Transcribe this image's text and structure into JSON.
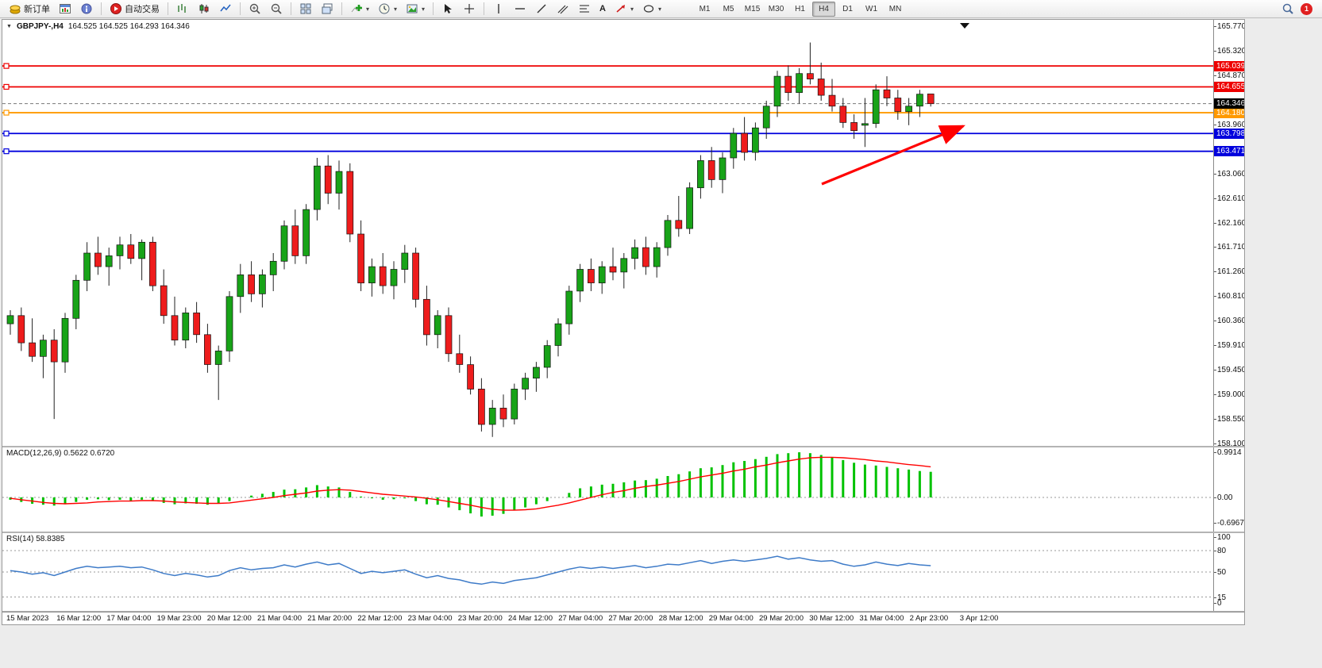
{
  "toolbar": {
    "new_order_label": "新订单",
    "auto_trading_label": "自动交易",
    "text_tool_label": "A",
    "timeframes": [
      "M1",
      "M5",
      "M15",
      "M30",
      "H1",
      "H4",
      "D1",
      "W1",
      "MN"
    ],
    "active_timeframe": "H4",
    "badge_count": "1"
  },
  "icons": {
    "new_order": "gold-coins",
    "market_watch": "window-chart",
    "data_window": "info-circle",
    "auto_trading": "red-play-circle",
    "chart_bars": "ohlc-bars",
    "chart_candles": "candlesticks",
    "chart_line": "line-chart",
    "zoom_in": "magnifier-plus",
    "zoom_out": "magnifier-minus",
    "tile_windows": "tiled-rects",
    "cascade_windows": "cascade-rects",
    "indicators": "green-plus",
    "periods": "clock",
    "templates": "picture",
    "cursor": "arrow-pointer",
    "crosshair": "crosshair",
    "vertical_line": "vertical-bar",
    "horizontal_line": "horizontal-bar",
    "trendline": "diagonal",
    "channel": "parallel-lines",
    "fibonacci": "fib-lines",
    "text_tool": "letter-A",
    "arrows_tool": "red-arrow",
    "shapes": "ellipse-dropdown",
    "search": "magnifier",
    "notifications": "red-badge-1",
    "scroll_end_marker": "black-down-triangle"
  },
  "colors": {
    "candle_up": "#18a318",
    "candle_down": "#ee1c1c",
    "wick": "#222222",
    "macd_hist": "#00c200",
    "macd_signal": "#ff0000",
    "rsi": "#3e7bc8",
    "arrow": "#ff0000",
    "current_price_bg": "#000000"
  },
  "chart_data": {
    "type": "candlestick",
    "symbol": "GBPJPY-",
    "timeframe": "H4",
    "symbol_period": "GBPJPY-,H4",
    "ohlc_text": "164.525 164.525 164.293 164.346",
    "last_ohlc": {
      "open": 164.525,
      "high": 164.525,
      "low": 164.293,
      "close": 164.346
    },
    "price_range": {
      "max": 165.77,
      "min": 158.1
    },
    "price_axis_ticks": [
      "165.770",
      "165.320",
      "164.870",
      "163.960",
      "163.060",
      "162.610",
      "162.160",
      "161.710",
      "161.260",
      "160.810",
      "160.360",
      "159.910",
      "159.450",
      "159.000",
      "158.550",
      "158.100"
    ],
    "hlines": [
      {
        "price": 165.039,
        "label": "165.039",
        "color": "#ee0000",
        "style": "resistance"
      },
      {
        "price": 164.655,
        "label": "164.655",
        "color": "#ee0000",
        "style": "resistance"
      },
      {
        "price": 164.18,
        "label": "164.180",
        "color": "#ff9900",
        "style": "pivot"
      },
      {
        "price": 163.798,
        "label": "163.798",
        "color": "#0000dd",
        "style": "support"
      },
      {
        "price": 163.471,
        "label": "163.471",
        "color": "#0000dd",
        "style": "support"
      }
    ],
    "current_price_value": 164.346,
    "current_price_label": "164.346",
    "annotation_arrow": {
      "description": "red up-sloping trend arrow",
      "color": "#ff0000"
    },
    "candles": [
      [
        160.3,
        160.55,
        160.1,
        160.45
      ],
      [
        160.45,
        160.6,
        159.8,
        159.95
      ],
      [
        159.95,
        160.4,
        159.6,
        159.7
      ],
      [
        159.7,
        160.1,
        159.3,
        160.0
      ],
      [
        160.0,
        160.2,
        158.55,
        159.6
      ],
      [
        159.6,
        160.5,
        159.4,
        160.4
      ],
      [
        160.4,
        161.2,
        160.2,
        161.1
      ],
      [
        161.1,
        161.8,
        160.9,
        161.6
      ],
      [
        161.6,
        161.9,
        161.2,
        161.35
      ],
      [
        161.35,
        161.7,
        161.0,
        161.55
      ],
      [
        161.55,
        161.9,
        161.3,
        161.75
      ],
      [
        161.75,
        161.95,
        161.4,
        161.5
      ],
      [
        161.5,
        161.85,
        161.1,
        161.8
      ],
      [
        161.8,
        161.9,
        160.9,
        161.0
      ],
      [
        161.0,
        161.3,
        160.3,
        160.45
      ],
      [
        160.45,
        160.8,
        159.9,
        160.0
      ],
      [
        160.0,
        160.6,
        159.85,
        160.5
      ],
      [
        160.5,
        160.7,
        159.95,
        160.1
      ],
      [
        160.1,
        160.3,
        159.4,
        159.55
      ],
      [
        159.55,
        159.9,
        158.9,
        159.8
      ],
      [
        159.8,
        160.9,
        159.6,
        160.8
      ],
      [
        160.8,
        161.4,
        160.5,
        161.2
      ],
      [
        161.2,
        161.45,
        160.7,
        160.85
      ],
      [
        160.85,
        161.3,
        160.6,
        161.2
      ],
      [
        161.2,
        161.6,
        160.9,
        161.45
      ],
      [
        161.45,
        162.2,
        161.3,
        162.1
      ],
      [
        162.1,
        162.4,
        161.4,
        161.55
      ],
      [
        161.55,
        162.5,
        161.4,
        162.4
      ],
      [
        162.4,
        163.35,
        162.2,
        163.2
      ],
      [
        163.2,
        163.4,
        162.5,
        162.7
      ],
      [
        162.7,
        163.3,
        162.4,
        163.1
      ],
      [
        163.1,
        163.25,
        161.8,
        161.95
      ],
      [
        161.95,
        162.2,
        160.9,
        161.05
      ],
      [
        161.05,
        161.5,
        160.8,
        161.35
      ],
      [
        161.35,
        161.6,
        160.85,
        161.0
      ],
      [
        161.0,
        161.45,
        160.75,
        161.3
      ],
      [
        161.3,
        161.75,
        161.05,
        161.6
      ],
      [
        161.6,
        161.7,
        160.6,
        160.75
      ],
      [
        160.75,
        161.0,
        159.9,
        160.1
      ],
      [
        160.1,
        160.55,
        159.85,
        160.45
      ],
      [
        160.45,
        160.6,
        159.6,
        159.75
      ],
      [
        159.75,
        160.1,
        159.4,
        159.55
      ],
      [
        159.55,
        159.7,
        159.0,
        159.1
      ],
      [
        159.1,
        159.3,
        158.32,
        158.45
      ],
      [
        158.45,
        158.9,
        158.22,
        158.75
      ],
      [
        158.75,
        159.0,
        158.4,
        158.55
      ],
      [
        158.55,
        159.2,
        158.45,
        159.1
      ],
      [
        159.1,
        159.4,
        158.9,
        159.3
      ],
      [
        159.3,
        159.6,
        159.05,
        159.5
      ],
      [
        159.5,
        160.0,
        159.3,
        159.9
      ],
      [
        159.9,
        160.4,
        159.7,
        160.3
      ],
      [
        160.3,
        161.0,
        160.1,
        160.9
      ],
      [
        160.9,
        161.4,
        160.7,
        161.3
      ],
      [
        161.3,
        161.5,
        160.9,
        161.05
      ],
      [
        161.05,
        161.45,
        160.85,
        161.35
      ],
      [
        161.35,
        161.7,
        161.1,
        161.25
      ],
      [
        161.25,
        161.6,
        160.95,
        161.5
      ],
      [
        161.5,
        161.85,
        161.3,
        161.7
      ],
      [
        161.7,
        161.9,
        161.2,
        161.35
      ],
      [
        161.35,
        161.8,
        161.15,
        161.7
      ],
      [
        161.7,
        162.3,
        161.55,
        162.2
      ],
      [
        162.2,
        162.65,
        161.9,
        162.05
      ],
      [
        162.05,
        162.9,
        161.95,
        162.8
      ],
      [
        162.8,
        163.4,
        162.6,
        163.3
      ],
      [
        163.3,
        163.55,
        162.8,
        162.95
      ],
      [
        162.95,
        163.45,
        162.7,
        163.35
      ],
      [
        163.35,
        163.9,
        163.15,
        163.8
      ],
      [
        163.8,
        164.1,
        163.3,
        163.45
      ],
      [
        163.45,
        164.0,
        163.3,
        163.9
      ],
      [
        163.9,
        164.4,
        163.7,
        164.3
      ],
      [
        164.3,
        164.95,
        164.1,
        164.85
      ],
      [
        164.85,
        165.05,
        164.4,
        164.55
      ],
      [
        164.55,
        165.0,
        164.35,
        164.9
      ],
      [
        164.9,
        165.47,
        164.7,
        164.8
      ],
      [
        164.8,
        165.1,
        164.4,
        164.5
      ],
      [
        164.5,
        164.8,
        164.2,
        164.3
      ],
      [
        164.3,
        164.45,
        163.9,
        164.0
      ],
      [
        164.0,
        164.15,
        163.7,
        163.85
      ],
      [
        163.95,
        164.45,
        163.55,
        163.98
      ],
      [
        163.98,
        164.7,
        163.9,
        164.6
      ],
      [
        164.6,
        164.85,
        164.3,
        164.45
      ],
      [
        164.45,
        164.6,
        164.05,
        164.2
      ],
      [
        164.2,
        164.45,
        163.95,
        164.3
      ],
      [
        164.3,
        164.6,
        164.1,
        164.52
      ],
      [
        164.525,
        164.525,
        164.293,
        164.346
      ]
    ],
    "time_labels": [
      "15 Mar 2023",
      "16 Mar 12:00",
      "17 Mar 04:00",
      "19 Mar 23:00",
      "20 Mar 12:00",
      "21 Mar 04:00",
      "21 Mar 20:00",
      "22 Mar 12:00",
      "23 Mar 04:00",
      "23 Mar 20:00",
      "24 Mar 12:00",
      "27 Mar 04:00",
      "27 Mar 20:00",
      "28 Mar 12:00",
      "29 Mar 04:00",
      "29 Mar 20:00",
      "30 Mar 12:00",
      "31 Mar 04:00",
      "2 Apr 23:00",
      "3 Apr 12:00"
    ],
    "indicators": {
      "macd": {
        "label": "MACD(12,26,9) 0.5622 0.6720",
        "params": "12,26,9",
        "main_value": 0.5622,
        "signal_value": 0.672,
        "axis": [
          {
            "v": 0.9914,
            "t": "0.9914"
          },
          {
            "v": 0,
            "t": "0.00"
          },
          {
            "v": -0.6967,
            "t": "-0.6967"
          }
        ],
        "range": [
          -0.6967,
          0.9914
        ],
        "histogram": [
          -0.05,
          -0.1,
          -0.14,
          -0.16,
          -0.18,
          -0.15,
          -0.1,
          -0.05,
          -0.04,
          -0.06,
          -0.05,
          -0.07,
          -0.05,
          -0.08,
          -0.12,
          -0.15,
          -0.13,
          -0.14,
          -0.16,
          -0.14,
          -0.08,
          0.0,
          0.04,
          0.08,
          0.12,
          0.17,
          0.18,
          0.22,
          0.27,
          0.24,
          0.22,
          0.12,
          0.02,
          -0.02,
          -0.05,
          -0.04,
          -0.02,
          -0.08,
          -0.15,
          -0.16,
          -0.22,
          -0.28,
          -0.35,
          -0.42,
          -0.4,
          -0.36,
          -0.28,
          -0.22,
          -0.15,
          -0.08,
          0.0,
          0.1,
          0.2,
          0.24,
          0.28,
          0.3,
          0.33,
          0.37,
          0.38,
          0.41,
          0.47,
          0.51,
          0.57,
          0.64,
          0.66,
          0.71,
          0.77,
          0.8,
          0.84,
          0.89,
          0.95,
          0.97,
          0.99,
          0.97,
          0.93,
          0.88,
          0.82,
          0.76,
          0.72,
          0.7,
          0.67,
          0.64,
          0.61,
          0.58,
          0.5622
        ],
        "signal": [
          -0.02,
          -0.05,
          -0.08,
          -0.11,
          -0.13,
          -0.14,
          -0.13,
          -0.12,
          -0.1,
          -0.09,
          -0.08,
          -0.08,
          -0.07,
          -0.07,
          -0.08,
          -0.1,
          -0.11,
          -0.12,
          -0.13,
          -0.13,
          -0.12,
          -0.09,
          -0.06,
          -0.03,
          0.0,
          0.04,
          0.07,
          0.1,
          0.14,
          0.16,
          0.17,
          0.16,
          0.13,
          0.1,
          0.07,
          0.05,
          0.03,
          0.01,
          -0.02,
          -0.05,
          -0.09,
          -0.13,
          -0.17,
          -0.22,
          -0.26,
          -0.28,
          -0.28,
          -0.27,
          -0.25,
          -0.21,
          -0.17,
          -0.12,
          -0.06,
          0.0,
          0.06,
          0.11,
          0.15,
          0.2,
          0.24,
          0.27,
          0.31,
          0.35,
          0.4,
          0.45,
          0.49,
          0.53,
          0.58,
          0.62,
          0.67,
          0.71,
          0.76,
          0.8,
          0.84,
          0.87,
          0.88,
          0.88,
          0.87,
          0.85,
          0.83,
          0.8,
          0.78,
          0.75,
          0.72,
          0.7,
          0.672
        ]
      },
      "rsi": {
        "label": "RSI(14) 58.8385",
        "period": 14,
        "current_value": 58.8385,
        "axis": [
          {
            "v": 100,
            "t": "100"
          },
          {
            "v": 80,
            "t": "80"
          },
          {
            "v": 50,
            "t": "50"
          },
          {
            "v": 15,
            "t": "15"
          },
          {
            "v": 0,
            "t": "0"
          }
        ],
        "levels": [
          80,
          50,
          15
        ],
        "range": [
          0,
          100
        ],
        "values": [
          52,
          50,
          47,
          49,
          45,
          50,
          55,
          58,
          56,
          57,
          58,
          56,
          57,
          53,
          48,
          45,
          48,
          46,
          43,
          45,
          52,
          56,
          53,
          55,
          56,
          60,
          57,
          61,
          64,
          60,
          62,
          55,
          48,
          51,
          49,
          51,
          53,
          47,
          42,
          45,
          41,
          39,
          35,
          33,
          36,
          34,
          38,
          40,
          42,
          46,
          50,
          54,
          57,
          55,
          57,
          55,
          57,
          59,
          56,
          58,
          61,
          60,
          63,
          66,
          62,
          65,
          67,
          65,
          67,
          69,
          72,
          68,
          70,
          67,
          65,
          66,
          61,
          58,
          60,
          64,
          61,
          59,
          62,
          60,
          58.8385
        ]
      }
    }
  }
}
